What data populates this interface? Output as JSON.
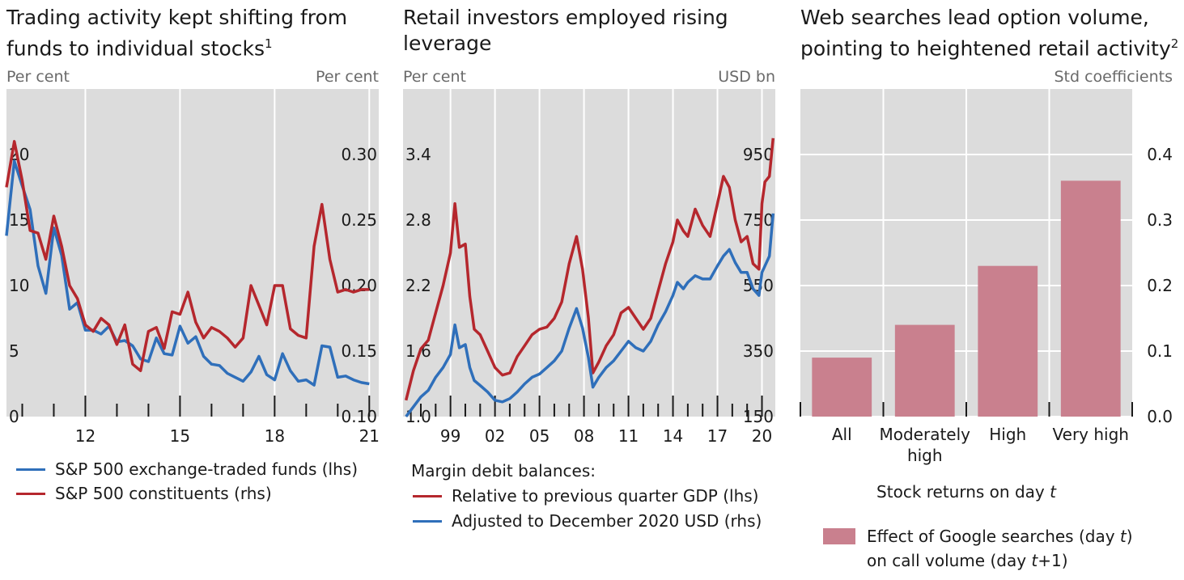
{
  "panels": [
    {
      "title_line1": "Trading activity kept shifting from",
      "title_line2": "funds to individual stocks",
      "title_footnote": "1",
      "left_unit": "Per cent",
      "right_unit": "Per cent",
      "legend": [
        {
          "label": "S&P 500 exchange-traded funds (lhs)",
          "color": "#2f6fba"
        },
        {
          "label": "S&P 500 constituents (rhs)",
          "color": "#b5272d"
        }
      ]
    },
    {
      "title_line1": "Retail investors employed rising",
      "title_line2": "leverage",
      "left_unit": "Per cent",
      "right_unit": "USD bn",
      "legend_header": "Margin debit balances:",
      "legend": [
        {
          "label": "Relative to previous quarter GDP (lhs)",
          "color": "#b5272d"
        },
        {
          "label": "Adjusted to December 2020 USD (rhs)",
          "color": "#2f6fba"
        }
      ]
    },
    {
      "title_line1": "Web searches lead option volume,",
      "title_line2": "pointing to heightened retail activity",
      "title_footnote": "2",
      "right_unit": "Std coefficients",
      "xlabel_pre": "Stock returns on day ",
      "xlabel_var": "t",
      "legend_line1_pre": "Effect of Google searches (day ",
      "legend_line1_var": "t",
      "legend_line1_post": ")",
      "legend_line2_pre": "on call volume (day ",
      "legend_line2_var": "t",
      "legend_line2_post": "+1)",
      "legend_color": "#c9808e"
    }
  ],
  "chart_data": [
    {
      "type": "line",
      "x_tick_labels": [
        "12",
        "15",
        "18",
        "21"
      ],
      "x_tick_values": [
        2012,
        2015,
        2018,
        2021
      ],
      "xlim": [
        2009.5,
        2021.3
      ],
      "left_axis": {
        "ticks": [
          "0",
          "5",
          "10",
          "15",
          "20"
        ],
        "tick_values": [
          0,
          5,
          10,
          15,
          20
        ],
        "ylim": [
          0,
          25
        ]
      },
      "right_axis": {
        "ticks": [
          "0.10",
          "0.15",
          "0.20",
          "0.25",
          "0.30"
        ],
        "tick_values": [
          0.1,
          0.15,
          0.2,
          0.25,
          0.3
        ],
        "ylim": [
          0.1,
          0.35
        ]
      },
      "series": [
        {
          "name": "S&P 500 exchange-traded funds (lhs)",
          "axis": "left",
          "color": "#2f6fba",
          "x": [
            2009.5,
            2009.75,
            2010.0,
            2010.25,
            2010.5,
            2010.75,
            2011.0,
            2011.25,
            2011.5,
            2011.75,
            2012.0,
            2012.25,
            2012.5,
            2012.75,
            2013.0,
            2013.25,
            2013.5,
            2013.75,
            2014.0,
            2014.25,
            2014.5,
            2014.75,
            2015.0,
            2015.25,
            2015.5,
            2015.75,
            2016.0,
            2016.25,
            2016.5,
            2016.75,
            2017.0,
            2017.25,
            2017.5,
            2017.75,
            2018.0,
            2018.25,
            2018.5,
            2018.75,
            2019.0,
            2019.25,
            2019.5,
            2019.75,
            2020.0,
            2020.25,
            2020.5,
            2020.75,
            2021.0
          ],
          "values": [
            13.8,
            19.5,
            17.6,
            15.8,
            11.5,
            9.4,
            14.4,
            12.3,
            8.2,
            8.7,
            6.6,
            6.6,
            6.3,
            6.9,
            5.7,
            5.8,
            5.4,
            4.4,
            4.2,
            6.0,
            4.8,
            4.7,
            6.9,
            5.6,
            6.1,
            4.6,
            4.0,
            3.9,
            3.3,
            3.0,
            2.7,
            3.4,
            4.6,
            3.2,
            2.8,
            4.8,
            3.5,
            2.7,
            2.8,
            2.4,
            5.4,
            5.3,
            3.0,
            3.1,
            2.8,
            2.6,
            2.5
          ]
        },
        {
          "name": "S&P 500 constituents (rhs)",
          "axis": "right",
          "color": "#b5272d",
          "x": [
            2009.5,
            2009.75,
            2010.0,
            2010.25,
            2010.5,
            2010.75,
            2011.0,
            2011.25,
            2011.5,
            2011.75,
            2012.0,
            2012.25,
            2012.5,
            2012.75,
            2013.0,
            2013.25,
            2013.5,
            2013.75,
            2014.0,
            2014.25,
            2014.5,
            2014.75,
            2015.0,
            2015.25,
            2015.5,
            2015.75,
            2016.0,
            2016.25,
            2016.5,
            2016.75,
            2017.0,
            2017.25,
            2017.5,
            2017.75,
            2018.0,
            2018.25,
            2018.5,
            2018.75,
            2019.0,
            2019.25,
            2019.5,
            2019.75,
            2020.0,
            2020.25,
            2020.5,
            2020.75,
            2021.0
          ],
          "values": [
            0.275,
            0.31,
            0.28,
            0.242,
            0.24,
            0.22,
            0.253,
            0.23,
            0.2,
            0.19,
            0.17,
            0.165,
            0.175,
            0.17,
            0.155,
            0.17,
            0.14,
            0.135,
            0.165,
            0.168,
            0.152,
            0.18,
            0.178,
            0.195,
            0.172,
            0.16,
            0.168,
            0.165,
            0.16,
            0.153,
            0.16,
            0.2,
            0.185,
            0.17,
            0.2,
            0.2,
            0.167,
            0.162,
            0.16,
            0.23,
            0.262,
            0.22,
            0.195,
            0.197,
            0.195,
            0.197,
            0.197
          ]
        }
      ]
    },
    {
      "type": "line",
      "x_tick_labels": [
        "99",
        "02",
        "05",
        "08",
        "11",
        "14",
        "17",
        "20"
      ],
      "x_tick_values": [
        1999,
        2002,
        2005,
        2008,
        2011,
        2014,
        2017,
        2020
      ],
      "xlim": [
        1995.8,
        2020.9
      ],
      "left_axis": {
        "ticks": [
          "1.0",
          "1.6",
          "2.2",
          "2.8",
          "3.4"
        ],
        "tick_values": [
          1.0,
          1.6,
          2.2,
          2.8,
          3.4
        ],
        "ylim": [
          1.0,
          4.0
        ]
      },
      "right_axis": {
        "ticks": [
          "150",
          "350",
          "550",
          "750",
          "950"
        ],
        "tick_values": [
          150,
          350,
          550,
          750,
          950
        ],
        "ylim": [
          150,
          1150
        ]
      },
      "series": [
        {
          "name": "Relative to previous quarter GDP (lhs)",
          "axis": "left",
          "color": "#b5272d",
          "x": [
            1996.0,
            1996.5,
            1997.0,
            1997.5,
            1998.0,
            1998.5,
            1999.0,
            1999.3,
            1999.6,
            2000.0,
            2000.3,
            2000.6,
            2001.0,
            2001.5,
            2002.0,
            2002.5,
            2003.0,
            2003.5,
            2004.0,
            2004.5,
            2005.0,
            2005.5,
            2006.0,
            2006.5,
            2007.0,
            2007.5,
            2007.9,
            2008.3,
            2008.6,
            2009.0,
            2009.5,
            2010.0,
            2010.5,
            2011.0,
            2011.5,
            2012.0,
            2012.5,
            2013.0,
            2013.5,
            2014.0,
            2014.3,
            2014.7,
            2015.0,
            2015.5,
            2016.0,
            2016.5,
            2017.0,
            2017.4,
            2017.8,
            2018.2,
            2018.6,
            2019.0,
            2019.4,
            2019.8,
            2020.0,
            2020.2,
            2020.5,
            2020.75
          ],
          "values": [
            1.15,
            1.42,
            1.62,
            1.7,
            1.95,
            2.2,
            2.5,
            2.95,
            2.55,
            2.58,
            2.1,
            1.8,
            1.75,
            1.6,
            1.45,
            1.38,
            1.4,
            1.55,
            1.65,
            1.75,
            1.8,
            1.82,
            1.9,
            2.05,
            2.4,
            2.65,
            2.35,
            1.9,
            1.4,
            1.5,
            1.65,
            1.75,
            1.95,
            2.0,
            1.9,
            1.8,
            1.9,
            2.15,
            2.4,
            2.6,
            2.8,
            2.7,
            2.65,
            2.9,
            2.75,
            2.65,
            2.95,
            3.2,
            3.1,
            2.8,
            2.6,
            2.65,
            2.4,
            2.35,
            2.95,
            3.15,
            3.2,
            3.55
          ]
        },
        {
          "name": "Adjusted to December 2020 USD (rhs)",
          "axis": "right",
          "color": "#2f6fba",
          "x": [
            1996.0,
            1996.5,
            1997.0,
            1997.5,
            1998.0,
            1998.5,
            1999.0,
            1999.3,
            1999.6,
            2000.0,
            2000.3,
            2000.6,
            2001.0,
            2001.5,
            2002.0,
            2002.5,
            2003.0,
            2003.5,
            2004.0,
            2004.5,
            2005.0,
            2005.5,
            2006.0,
            2006.5,
            2007.0,
            2007.5,
            2007.9,
            2008.3,
            2008.6,
            2009.0,
            2009.5,
            2010.0,
            2010.5,
            2011.0,
            2011.5,
            2012.0,
            2012.5,
            2013.0,
            2013.5,
            2014.0,
            2014.3,
            2014.7,
            2015.0,
            2015.5,
            2016.0,
            2016.5,
            2017.0,
            2017.4,
            2017.8,
            2018.2,
            2018.6,
            2019.0,
            2019.4,
            2019.8,
            2020.0,
            2020.2,
            2020.5,
            2020.75
          ],
          "values": [
            150,
            180,
            210,
            230,
            270,
            300,
            340,
            430,
            360,
            370,
            300,
            260,
            245,
            225,
            200,
            195,
            205,
            225,
            250,
            270,
            280,
            300,
            320,
            350,
            420,
            480,
            420,
            330,
            240,
            270,
            300,
            320,
            350,
            380,
            360,
            350,
            380,
            430,
            470,
            520,
            560,
            540,
            560,
            580,
            570,
            570,
            610,
            640,
            660,
            620,
            590,
            590,
            540,
            520,
            590,
            610,
            640,
            770
          ]
        }
      ]
    },
    {
      "type": "bar",
      "categories": [
        "All",
        "Moderately high",
        "High",
        "Very high"
      ],
      "category_lines": [
        [
          "All"
        ],
        [
          "Moderately",
          "high"
        ],
        [
          "High"
        ],
        [
          "Very high"
        ]
      ],
      "values": [
        0.09,
        0.14,
        0.23,
        0.36
      ],
      "series_name": "Effect of Google searches (day t) on call volume (day t+1)",
      "xlabel": "Stock returns on day t",
      "right_axis": {
        "ticks": [
          "0.0",
          "0.1",
          "0.2",
          "0.3",
          "0.4"
        ],
        "tick_values": [
          0.0,
          0.1,
          0.2,
          0.3,
          0.4
        ],
        "ylim": [
          0.0,
          0.5
        ]
      },
      "color": "#c9808e"
    }
  ]
}
